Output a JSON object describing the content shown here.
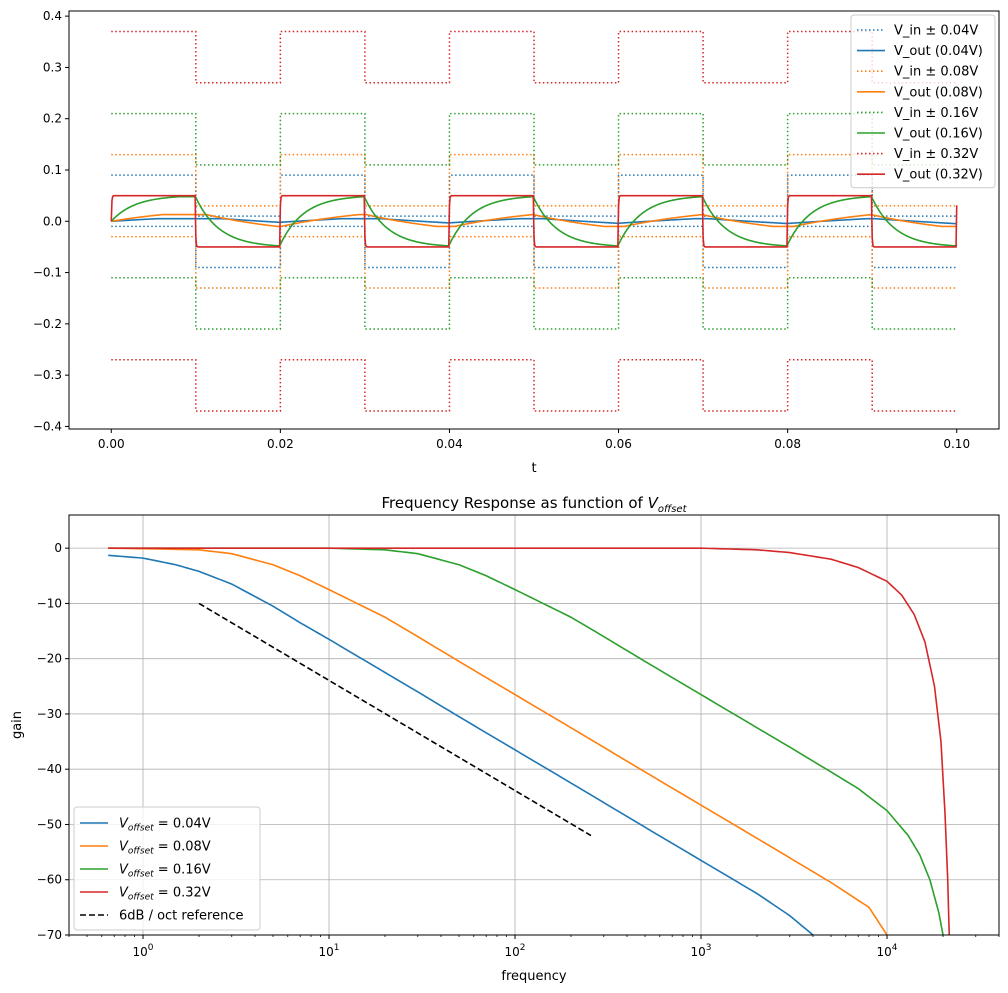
{
  "chart_data": [
    {
      "type": "line",
      "xlabel": "t",
      "ylabel": "",
      "xlim": [
        -0.005,
        0.105
      ],
      "ylim": [
        -0.405,
        0.41
      ],
      "xticks": [
        0.0,
        0.02,
        0.04,
        0.06,
        0.08,
        0.1
      ],
      "xtick_labels": [
        "0.00",
        "0.02",
        "0.04",
        "0.06",
        "0.08",
        "0.10"
      ],
      "yticks": [
        -0.4,
        -0.3,
        -0.2,
        -0.1,
        0.0,
        0.1,
        0.2,
        0.3,
        0.4
      ],
      "ytick_labels": [
        "−0.4",
        "−0.3",
        "−0.2",
        "−0.1",
        "0.0",
        "0.1",
        "0.2",
        "0.3",
        "0.4"
      ],
      "grid": false,
      "legend_position": "top-right",
      "square_wave_period": 0.02,
      "t_range": [
        0.0,
        0.1
      ],
      "series": [
        {
          "name": "V_in ± 0.04V",
          "kind": "input",
          "offset": 0.04,
          "color": "#1f77b4",
          "style": "dotted",
          "levels_first_half": [
            0.09,
            -0.01
          ],
          "levels_second_half": [
            0.01,
            -0.09
          ]
        },
        {
          "name": "V_out (0.04V)",
          "kind": "output",
          "offset": 0.04,
          "color": "#1f77b4",
          "style": "solid",
          "peak_values": [
            0.005,
            -0.005
          ]
        },
        {
          "name": "V_in ± 0.08V",
          "kind": "input",
          "offset": 0.08,
          "color": "#ff7f0e",
          "style": "dotted",
          "levels_first_half": [
            0.13,
            -0.03
          ],
          "levels_second_half": [
            0.03,
            -0.13
          ]
        },
        {
          "name": "V_out (0.08V)",
          "kind": "output",
          "offset": 0.08,
          "color": "#ff7f0e",
          "style": "solid",
          "peak_values": [
            0.013,
            -0.01
          ]
        },
        {
          "name": "V_in ± 0.16V",
          "kind": "input",
          "offset": 0.16,
          "color": "#2ca02c",
          "style": "dotted",
          "levels_first_half": [
            0.21,
            -0.11
          ],
          "levels_second_half": [
            0.11,
            -0.21
          ]
        },
        {
          "name": "V_out (0.16V)",
          "kind": "output",
          "offset": 0.16,
          "color": "#2ca02c",
          "style": "solid",
          "peak_values": [
            0.048,
            -0.048
          ]
        },
        {
          "name": "V_in ± 0.32V",
          "kind": "input",
          "offset": 0.32,
          "color": "#d62728",
          "style": "dotted",
          "levels_first_half": [
            0.37,
            -0.27
          ],
          "levels_second_half": [
            0.27,
            -0.37
          ]
        },
        {
          "name": "V_out (0.32V)",
          "kind": "output",
          "offset": 0.32,
          "color": "#d62728",
          "style": "solid",
          "peak_values": [
            0.05,
            -0.05
          ]
        }
      ]
    },
    {
      "type": "line",
      "title": "Frequency Response as function of V_offset",
      "title_prefix": "Frequency Response as function of ",
      "title_var": "V",
      "title_sub": "offset",
      "xlabel": "frequency",
      "ylabel": "gain",
      "xscale": "log",
      "xlim": [
        0.4,
        40000
      ],
      "ylim": [
        -70,
        6
      ],
      "xticks": [
        1,
        10,
        100,
        1000,
        10000
      ],
      "xtick_labels": [
        {
          "base": "10",
          "exp": "0"
        },
        {
          "base": "10",
          "exp": "1"
        },
        {
          "base": "10",
          "exp": "2"
        },
        {
          "base": "10",
          "exp": "3"
        },
        {
          "base": "10",
          "exp": "4"
        }
      ],
      "yticks": [
        0,
        -10,
        -20,
        -30,
        -40,
        -50,
        -60,
        -70
      ],
      "ytick_labels": [
        "0",
        "−10",
        "−20",
        "−30",
        "−40",
        "−50",
        "−60",
        "−70"
      ],
      "grid": true,
      "legend_position": "bottom-left",
      "series": [
        {
          "name": "V_offset = 0.04V",
          "label_var": "V",
          "label_sub": "offset",
          "label_rest": " = 0.04V",
          "color": "#1f77b4",
          "style": "solid",
          "x": [
            0.65,
            1.0,
            1.5,
            2.0,
            3.0,
            5.0,
            7.0,
            10,
            20,
            30,
            50,
            100,
            200,
            500,
            1000,
            2000,
            3000,
            4000
          ],
          "y": [
            -1.3,
            -1.8,
            -3.0,
            -4.2,
            -6.5,
            -10.5,
            -13.5,
            -16.5,
            -22.5,
            -26.0,
            -30.5,
            -36.5,
            -42.5,
            -50.5,
            -56.5,
            -62.5,
            -66.5,
            -70
          ]
        },
        {
          "name": "V_offset = 0.08V",
          "label_var": "V",
          "label_sub": "offset",
          "label_rest": " = 0.08V",
          "color": "#ff7f0e",
          "style": "solid",
          "x": [
            0.65,
            1.0,
            2.0,
            3.0,
            5.0,
            7.0,
            10,
            20,
            30,
            50,
            100,
            200,
            500,
            1000,
            2000,
            5000,
            8000,
            10000
          ],
          "y": [
            0,
            -0.1,
            -0.3,
            -1.0,
            -3.0,
            -5.0,
            -7.5,
            -12.5,
            -16.0,
            -20.5,
            -26.5,
            -32.5,
            -40.5,
            -46.5,
            -52.5,
            -60.5,
            -65.0,
            -70
          ]
        },
        {
          "name": "V_offset = 0.16V",
          "label_var": "V",
          "label_sub": "offset",
          "label_rest": " = 0.16V",
          "color": "#2ca02c",
          "style": "solid",
          "x": [
            0.65,
            10,
            20,
            30,
            50,
            70,
            100,
            200,
            300,
            500,
            1000,
            2000,
            3000,
            5000,
            7000,
            10000,
            13000,
            15000,
            17000,
            19000,
            20000
          ],
          "y": [
            0,
            0,
            -0.3,
            -1.0,
            -3.0,
            -5.0,
            -7.5,
            -12.5,
            -16.0,
            -20.5,
            -26.5,
            -32.5,
            -36.0,
            -40.5,
            -43.5,
            -47.5,
            -52.0,
            -55.5,
            -60.0,
            -66.0,
            -70
          ]
        },
        {
          "name": "V_offset = 0.32V",
          "label_var": "V",
          "label_sub": "offset",
          "label_rest": " = 0.32V",
          "color": "#d62728",
          "style": "solid",
          "x": [
            0.65,
            100,
            1000,
            2000,
            3000,
            5000,
            7000,
            10000,
            12000,
            14000,
            16000,
            18000,
            19500,
            20500,
            21200,
            21600
          ],
          "y": [
            0,
            0,
            0,
            -0.3,
            -0.8,
            -2.0,
            -3.5,
            -6.0,
            -8.5,
            -12.0,
            -17.0,
            -25.0,
            -35.0,
            -48.0,
            -60.0,
            -70
          ]
        },
        {
          "name": "6dB / oct reference",
          "label_rest": "6dB / oct reference",
          "color": "#000000",
          "style": "dashed",
          "x": [
            2,
            256
          ],
          "y": [
            -10,
            -52
          ]
        }
      ]
    }
  ]
}
